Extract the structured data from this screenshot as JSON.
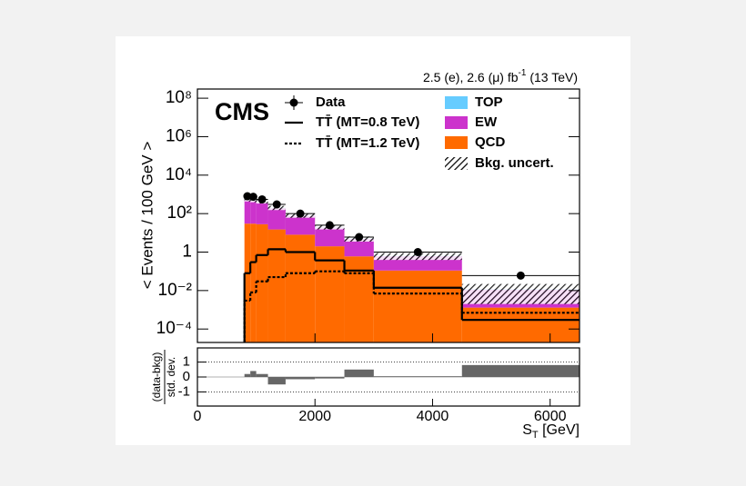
{
  "chart_data": [
    {
      "type": "stacked_histogram",
      "title": "CMS",
      "lumi": {
        "text": "2.5 (e), 2.6 (μ) fb",
        "sup": "-1",
        "energy": " (13 TeV)"
      },
      "y_label": "< Events / 100 GeV >",
      "log": true,
      "bins": [
        800,
        900,
        1000,
        1200,
        1500,
        2000,
        2500,
        3000,
        4500,
        6500
      ],
      "xlim": [
        0,
        6500
      ],
      "ylim": [
        2e-05,
        300000000
      ],
      "yticks": [
        {
          "value": 100000000,
          "label": "10⁸"
        },
        {
          "value": 1000000,
          "label": "10⁶"
        },
        {
          "value": 10000,
          "label": "10⁴"
        },
        {
          "value": 100,
          "label": "10²"
        },
        1,
        {
          "value": 0.01,
          "label": "10⁻²"
        },
        {
          "value": 0.0001,
          "label": "10⁻⁴"
        }
      ],
      "series": [
        {
          "name": "QCD",
          "color": "#ff6a00",
          "values": [
            30,
            30,
            28,
            15,
            8,
            2,
            0.6,
            0.11,
            0.0013
          ]
        },
        {
          "name": "EW",
          "color": "#cc33cc",
          "values": [
            500,
            450,
            380,
            180,
            70,
            17,
            4.2,
            0.5,
            0.01
          ]
        },
        {
          "name": "TOP",
          "color": "#66ccff",
          "values": [
            20,
            20,
            15,
            8,
            3,
            1,
            0.2,
            0.03,
            0.0007
          ]
        }
      ],
      "uncertainty": {
        "name": "Bkg. uncert.",
        "values": [
          120,
          110,
          90,
          50,
          20,
          5,
          1.5,
          0.25,
          0.01
        ]
      },
      "data": {
        "name": "Data",
        "color": "#000000",
        "values": [
          800,
          750,
          550,
          300,
          100,
          25,
          6,
          1,
          0.06
        ]
      },
      "signals": [
        {
          "name": "TT̄ (MT=0.8 TeV)",
          "color": "#000000",
          "dashed": false,
          "values": [
            0.08,
            0.3,
            0.7,
            1.4,
            1,
            0.37,
            0.11,
            0.014,
            0.0003
          ]
        },
        {
          "name": "TT̄ (MT=1.2 TeV)",
          "color": "#000000",
          "dashed": true,
          "values": [
            0.003,
            0.008,
            0.03,
            0.05,
            0.08,
            0.1,
            0.08,
            0.007,
            0.0007
          ]
        }
      ]
    },
    {
      "type": "pull",
      "y_label": {
        "numerator": "(data-bkg)",
        "denominator": "std. dev."
      },
      "x_label": {
        "main": "S",
        "sub": "T",
        "unit": " [GeV]"
      },
      "xlim": [
        0,
        6500
      ],
      "xticks": [
        0,
        2000,
        4000,
        6000
      ],
      "ylim": [
        -1.95,
        1.95
      ],
      "yticks": [
        1,
        0,
        -1
      ],
      "color": "#666666",
      "values": [
        0.2,
        0.4,
        0.2,
        -0.5,
        -0.15,
        -0.1,
        0.5,
        0.05,
        0.8
      ]
    }
  ]
}
